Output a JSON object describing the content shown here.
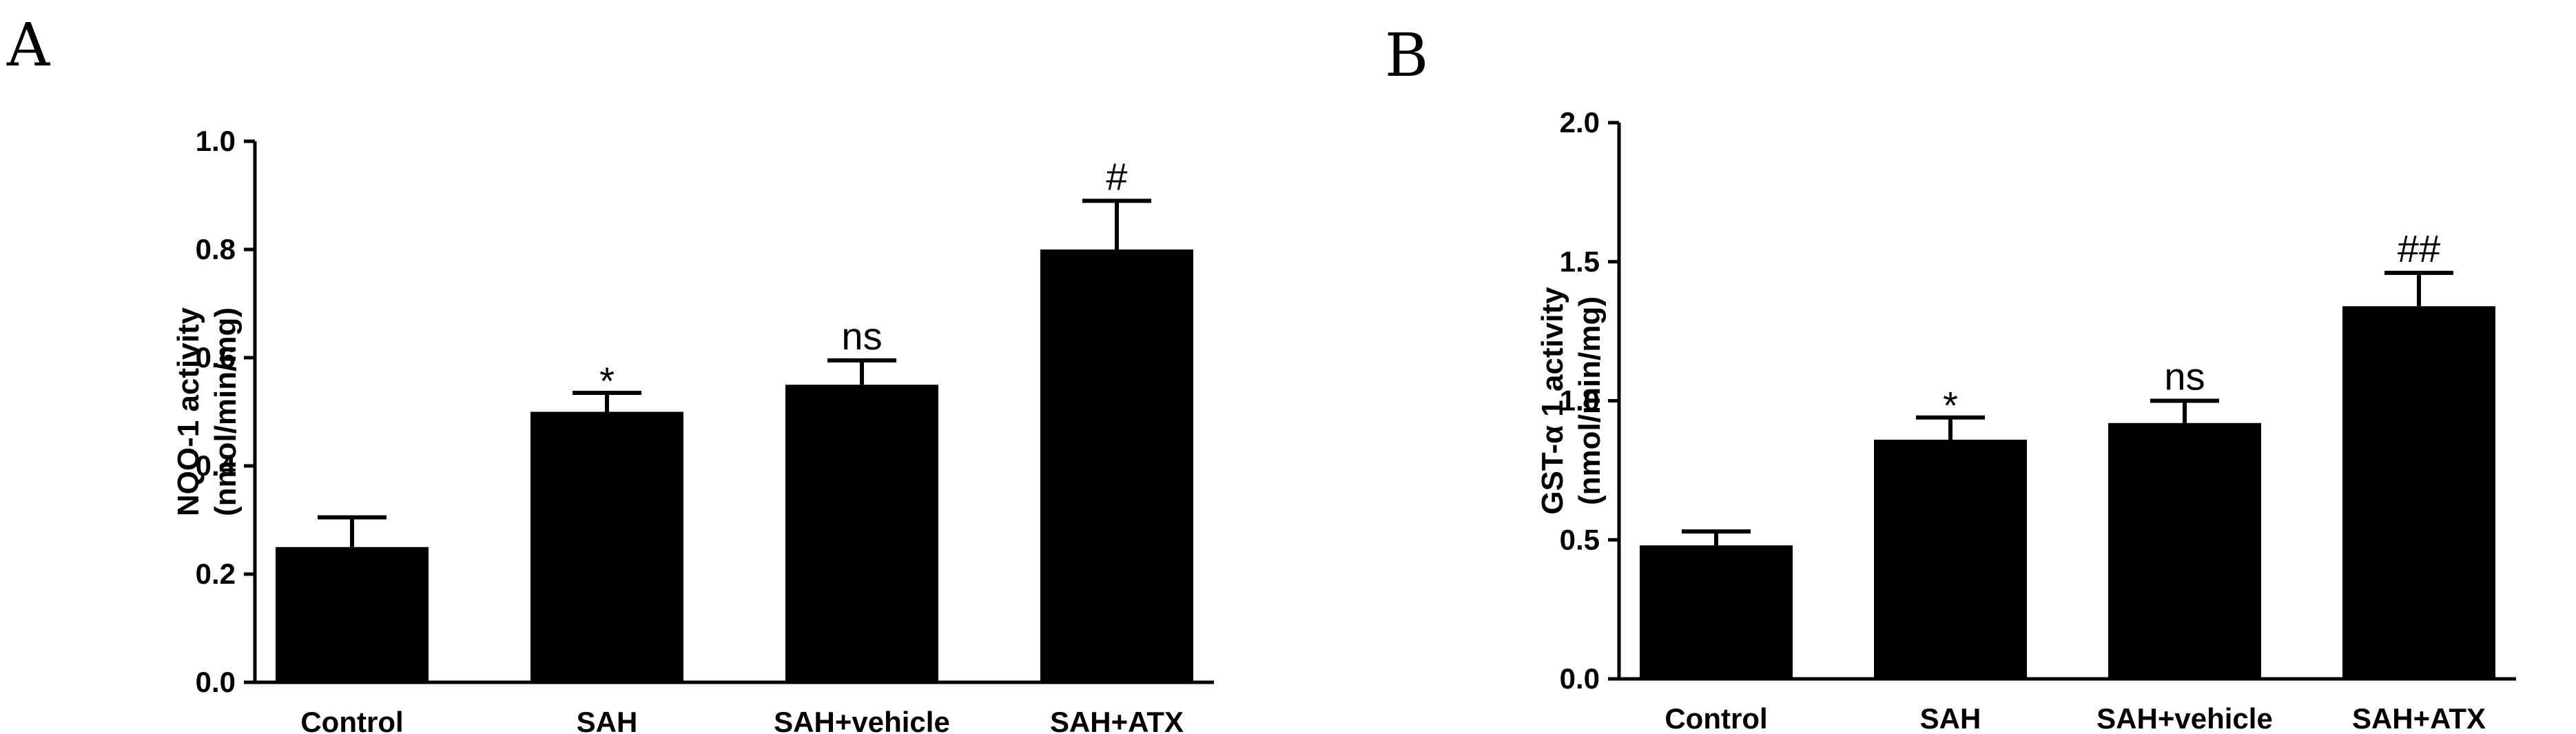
{
  "chart_data": [
    {
      "panel": "A",
      "type": "bar",
      "categories": [
        "Control",
        "SAH",
        "SAH+vehicle",
        "SAH+ATX"
      ],
      "values": [
        0.25,
        0.5,
        0.55,
        0.8
      ],
      "errors": [
        0.055,
        0.035,
        0.045,
        0.09
      ],
      "annotations": [
        "",
        "*",
        "ns",
        "#"
      ],
      "title": "",
      "xlabel": "",
      "ylabel": [
        "NQO-1 activity",
        "(nmol/min/mg)"
      ],
      "ylim": [
        0,
        1.0
      ],
      "yticks": [
        0.0,
        0.2,
        0.4,
        0.6,
        0.8,
        1.0
      ],
      "ytick_labels": [
        "0.0",
        "0.2",
        "0.4",
        "0.6",
        "0.8",
        "1.0"
      ],
      "grid": false,
      "bar_color": "#000000"
    },
    {
      "panel": "B",
      "type": "bar",
      "categories": [
        "Control",
        "SAH",
        "SAH+vehicle",
        "SAH+ATX"
      ],
      "values": [
        0.48,
        0.86,
        0.92,
        1.34
      ],
      "errors": [
        0.05,
        0.08,
        0.08,
        0.12
      ],
      "annotations": [
        "",
        "*",
        "ns",
        "##"
      ],
      "title": "",
      "xlabel": "",
      "ylabel": [
        "GST-α 1 activity",
        "(nmol/min/mg)"
      ],
      "ylim": [
        0,
        2.0
      ],
      "yticks": [
        0.0,
        0.5,
        1.0,
        1.5,
        2.0
      ],
      "ytick_labels": [
        "0.0",
        "0.5",
        "1.0",
        "1.5",
        "2.0"
      ],
      "grid": false,
      "bar_color": "#000000"
    }
  ]
}
